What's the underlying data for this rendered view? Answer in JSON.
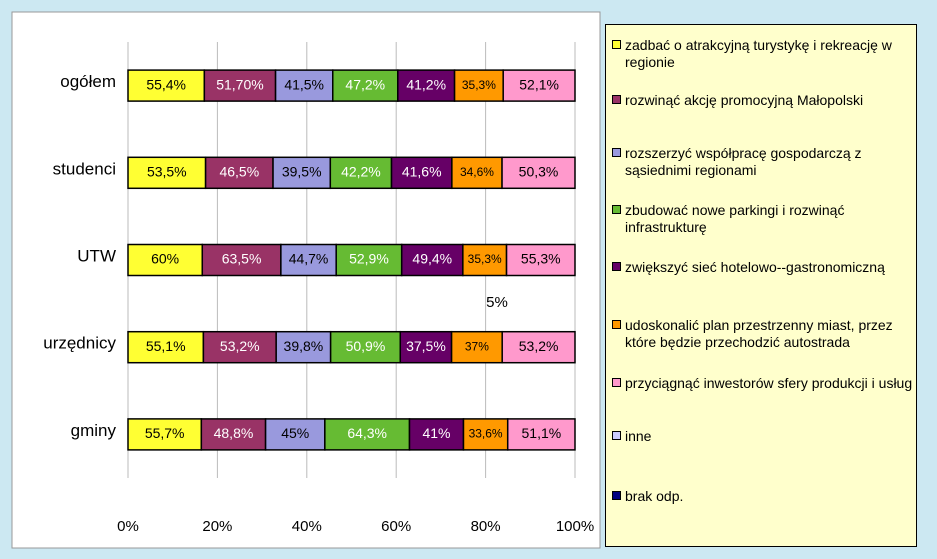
{
  "chart_data": {
    "type": "bar",
    "orientation": "horizontal",
    "stacked": "percent",
    "categories": [
      "ogółem",
      "studenci",
      "UTW",
      "urzędnicy",
      "gminy"
    ],
    "series": [
      {
        "name": "zadbać o atrakcyjną turystykę i rekreację w regionie",
        "color": "#ffff33",
        "values": [
          55.4,
          53.5,
          60,
          55.1,
          55.7
        ],
        "value_labels": [
          "55,4%",
          "53,5%",
          "60%",
          "55,1%",
          "55,7%"
        ]
      },
      {
        "name": "rozwinąć akcję promocyjną Małopolski",
        "color": "#993366",
        "values": [
          51.7,
          46.5,
          63.5,
          53.2,
          48.8
        ],
        "value_labels": [
          "51,70%",
          "46,5%",
          "63,5%",
          "53,2%",
          "48,8%"
        ]
      },
      {
        "name": "rozszerzyć współpracę gospodarczą z sąsiednimi regionami",
        "color": "#9999dd",
        "values": [
          41.5,
          39.5,
          44.7,
          39.8,
          45
        ],
        "value_labels": [
          "41,5%",
          "39,5%",
          "44,7%",
          "39,8%",
          "45%"
        ]
      },
      {
        "name": "zbudować nowe parkingi i rozwinąć infrastrukturę",
        "color": "#66bb33",
        "values": [
          47.2,
          42.2,
          52.9,
          50.9,
          64.3
        ],
        "value_labels": [
          "47,2%",
          "42,2%",
          "52,9%",
          "50,9%",
          "64,3%"
        ]
      },
      {
        "name": "zwiększyć sieć hotelowo--gastronomiczną",
        "color": "#660066",
        "values": [
          41.2,
          41.6,
          49.4,
          37.5,
          41
        ],
        "value_labels": [
          "41,2%",
          "41,6%",
          "49,4%",
          "37,5%",
          "41%"
        ]
      },
      {
        "name": "udoskonalić plan przestrzenny miast, przez które będzie przechodzić autostrada",
        "color": "#ff9900",
        "values": [
          35.3,
          34.6,
          35.3,
          37,
          33.6
        ],
        "value_labels": [
          "35,3%",
          "34,6%",
          "35,3%",
          "37%",
          "33,6%"
        ]
      },
      {
        "name": "przyciągnąć inwestorów sfery produkcji i usług",
        "color": "#ff99cc",
        "values": [
          52.1,
          50.3,
          55.3,
          53.2,
          51.1
        ],
        "value_labels": [
          "52,1%",
          "50,3%",
          "55,3%",
          "53,2%",
          "51,1%"
        ]
      },
      {
        "name": "inne",
        "color": "#ccccff",
        "values": [
          0,
          0,
          0,
          0,
          0
        ]
      },
      {
        "name": "brak odp.",
        "color": "#000080",
        "values": [
          0,
          0,
          0,
          0,
          0
        ]
      }
    ],
    "xlim": [
      0,
      100
    ],
    "xticks": [
      {
        "value": 0,
        "label": "0%"
      },
      {
        "value": 20,
        "label": "20%"
      },
      {
        "value": 40,
        "label": "40%"
      },
      {
        "value": 60,
        "label": "60%"
      },
      {
        "value": 80,
        "label": "80%"
      },
      {
        "value": 100,
        "label": "100%"
      }
    ],
    "grid": true,
    "legend": "right",
    "annotations": [
      "5%"
    ]
  }
}
